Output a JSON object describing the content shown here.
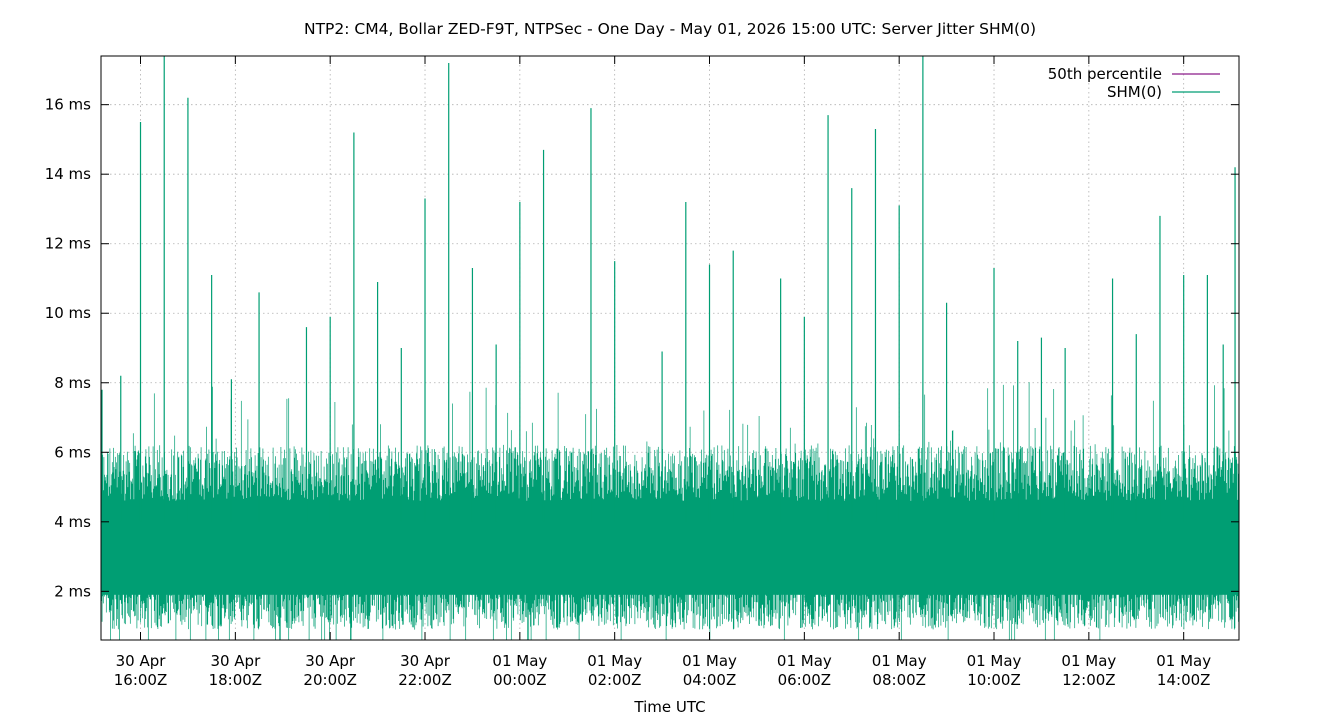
{
  "chart_data": {
    "type": "line",
    "title": "NTP2: CM4, Bollar ZED-F9T, NTPSec - One Day - May 01, 2026 15:00 UTC: Server Jitter SHM(0)",
    "xlabel": "Time UTC",
    "ylabel": "",
    "ylim": [
      0.6,
      17.4
    ],
    "y_ticks": [
      {
        "value": 2,
        "label": "2 ms"
      },
      {
        "value": 4,
        "label": "4 ms"
      },
      {
        "value": 6,
        "label": "6 ms"
      },
      {
        "value": 8,
        "label": "8 ms"
      },
      {
        "value": 10,
        "label": "10 ms"
      },
      {
        "value": 12,
        "label": "12 ms"
      },
      {
        "value": 14,
        "label": "14 ms"
      },
      {
        "value": 16,
        "label": "16 ms"
      }
    ],
    "xlim": [
      "2026-04-30T15:10Z",
      "2026-05-01T15:10Z"
    ],
    "x_ticks": [
      {
        "value": "2026-04-30T16:00Z",
        "date": "30 Apr",
        "time": "16:00Z"
      },
      {
        "value": "2026-04-30T18:00Z",
        "date": "30 Apr",
        "time": "18:00Z"
      },
      {
        "value": "2026-04-30T20:00Z",
        "date": "30 Apr",
        "time": "20:00Z"
      },
      {
        "value": "2026-04-30T22:00Z",
        "date": "30 Apr",
        "time": "22:00Z"
      },
      {
        "value": "2026-05-01T00:00Z",
        "date": "01 May",
        "time": "00:00Z"
      },
      {
        "value": "2026-05-01T02:00Z",
        "date": "01 May",
        "time": "02:00Z"
      },
      {
        "value": "2026-05-01T04:00Z",
        "date": "01 May",
        "time": "04:00Z"
      },
      {
        "value": "2026-05-01T06:00Z",
        "date": "01 May",
        "time": "06:00Z"
      },
      {
        "value": "2026-05-01T08:00Z",
        "date": "01 May",
        "time": "08:00Z"
      },
      {
        "value": "2026-05-01T10:00Z",
        "date": "01 May",
        "time": "10:00Z"
      },
      {
        "value": "2026-05-01T12:00Z",
        "date": "01 May",
        "time": "12:00Z"
      },
      {
        "value": "2026-05-01T14:00Z",
        "date": "01 May",
        "time": "14:00Z"
      }
    ],
    "grid": true,
    "legend_position": "top-right",
    "series": [
      {
        "name": "50th percentile",
        "color": "#8b1a89",
        "values": []
      },
      {
        "name": "SHM(0)",
        "color": "#009e73",
        "typical_range_ms": [
          1.5,
          5.5
        ],
        "peaks": [
          {
            "x": "2026-04-30T15:10Z",
            "y": 7.8
          },
          {
            "x": "2026-04-30T15:35Z",
            "y": 8.2
          },
          {
            "x": "2026-04-30T16:00Z",
            "y": 15.5
          },
          {
            "x": "2026-04-30T16:30Z",
            "y": 17.4
          },
          {
            "x": "2026-04-30T17:00Z",
            "y": 16.2
          },
          {
            "x": "2026-04-30T17:30Z",
            "y": 11.1
          },
          {
            "x": "2026-04-30T17:55Z",
            "y": 8.1
          },
          {
            "x": "2026-04-30T18:30Z",
            "y": 10.6
          },
          {
            "x": "2026-04-30T19:30Z",
            "y": 9.6
          },
          {
            "x": "2026-04-30T20:00Z",
            "y": 9.9
          },
          {
            "x": "2026-04-30T20:30Z",
            "y": 15.2
          },
          {
            "x": "2026-04-30T21:00Z",
            "y": 10.9
          },
          {
            "x": "2026-04-30T21:30Z",
            "y": 9.0
          },
          {
            "x": "2026-04-30T22:00Z",
            "y": 13.3
          },
          {
            "x": "2026-04-30T22:30Z",
            "y": 17.2
          },
          {
            "x": "2026-04-30T23:00Z",
            "y": 11.3
          },
          {
            "x": "2026-04-30T23:30Z",
            "y": 9.1
          },
          {
            "x": "2026-05-01T00:00Z",
            "y": 13.2
          },
          {
            "x": "2026-05-01T00:30Z",
            "y": 14.7
          },
          {
            "x": "2026-05-01T01:30Z",
            "y": 15.9
          },
          {
            "x": "2026-05-01T02:00Z",
            "y": 11.5
          },
          {
            "x": "2026-05-01T03:00Z",
            "y": 8.9
          },
          {
            "x": "2026-05-01T03:30Z",
            "y": 13.2
          },
          {
            "x": "2026-05-01T04:00Z",
            "y": 11.4
          },
          {
            "x": "2026-05-01T04:30Z",
            "y": 11.8
          },
          {
            "x": "2026-05-01T05:30Z",
            "y": 11.0
          },
          {
            "x": "2026-05-01T06:00Z",
            "y": 9.9
          },
          {
            "x": "2026-05-01T06:30Z",
            "y": 15.7
          },
          {
            "x": "2026-05-01T07:00Z",
            "y": 13.6
          },
          {
            "x": "2026-05-01T07:30Z",
            "y": 15.3
          },
          {
            "x": "2026-05-01T08:00Z",
            "y": 13.1
          },
          {
            "x": "2026-05-01T08:30Z",
            "y": 17.4
          },
          {
            "x": "2026-05-01T09:00Z",
            "y": 10.3
          },
          {
            "x": "2026-05-01T10:00Z",
            "y": 11.3
          },
          {
            "x": "2026-05-01T10:30Z",
            "y": 9.2
          },
          {
            "x": "2026-05-01T11:00Z",
            "y": 9.3
          },
          {
            "x": "2026-05-01T11:30Z",
            "y": 9.0
          },
          {
            "x": "2026-05-01T12:30Z",
            "y": 11.0
          },
          {
            "x": "2026-05-01T13:00Z",
            "y": 9.4
          },
          {
            "x": "2026-05-01T13:30Z",
            "y": 12.8
          },
          {
            "x": "2026-05-01T14:00Z",
            "y": 11.1
          },
          {
            "x": "2026-05-01T14:30Z",
            "y": 11.1
          },
          {
            "x": "2026-05-01T14:50Z",
            "y": 9.1
          },
          {
            "x": "2026-05-01T15:05Z",
            "y": 14.2
          }
        ]
      }
    ]
  }
}
